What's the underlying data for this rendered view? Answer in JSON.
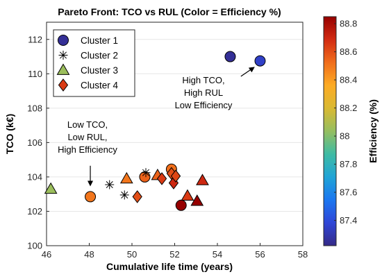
{
  "chart_data": {
    "type": "scatter",
    "title": "Pareto Front: TCO vs RUL (Color = Efficiency %)",
    "xlabel": "Cumulative life time (years)",
    "ylabel": "TCO (k€)",
    "xlim": [
      46,
      58
    ],
    "ylim": [
      100,
      113
    ],
    "xticks": [
      "46",
      "48",
      "50",
      "52",
      "54",
      "56",
      "58"
    ],
    "yticks": [
      "100",
      "102",
      "104",
      "106",
      "108",
      "110",
      "112"
    ],
    "grid": "horizontal",
    "legend_position": "top-left",
    "colorbar": {
      "label": "Efficiency (%)",
      "range": [
        87.22,
        88.85
      ],
      "ticks": [
        "87.4",
        "87.6",
        "87.8",
        "88",
        "88.2",
        "88.4",
        "88.6",
        "88.8"
      ]
    },
    "series": [
      {
        "name": "Cluster 1",
        "marker": "circle",
        "points": [
          {
            "x": 54.6,
            "y": 111.0,
            "efficiency": 87.25
          },
          {
            "x": 56.0,
            "y": 110.75,
            "efficiency": 87.35
          },
          {
            "x": 48.05,
            "y": 102.85,
            "efficiency": 88.5
          },
          {
            "x": 50.6,
            "y": 104.0,
            "efficiency": 88.55
          },
          {
            "x": 51.85,
            "y": 104.45,
            "efficiency": 88.52
          },
          {
            "x": 52.3,
            "y": 102.35,
            "efficiency": 88.85
          }
        ]
      },
      {
        "name": "Cluster 2",
        "marker": "asterisk",
        "points": [
          {
            "x": 48.95,
            "y": 103.55
          },
          {
            "x": 49.65,
            "y": 102.95
          },
          {
            "x": 50.65,
            "y": 104.25
          }
        ]
      },
      {
        "name": "Cluster 3",
        "marker": "triangle",
        "points": [
          {
            "x": 46.2,
            "y": 103.3,
            "efficiency": 88.05
          },
          {
            "x": 49.75,
            "y": 103.9,
            "efficiency": 88.5
          },
          {
            "x": 51.2,
            "y": 104.1,
            "efficiency": 88.55
          },
          {
            "x": 52.6,
            "y": 102.9,
            "efficiency": 88.65
          },
          {
            "x": 53.05,
            "y": 102.6,
            "efficiency": 88.85
          },
          {
            "x": 53.3,
            "y": 103.8,
            "efficiency": 88.7
          }
        ]
      },
      {
        "name": "Cluster 4",
        "marker": "diamond",
        "points": [
          {
            "x": 50.25,
            "y": 102.85,
            "efficiency": 88.6
          },
          {
            "x": 51.4,
            "y": 103.9,
            "efficiency": 88.65
          },
          {
            "x": 51.85,
            "y": 104.2,
            "efficiency": 88.6
          },
          {
            "x": 51.95,
            "y": 103.65,
            "efficiency": 88.7
          },
          {
            "x": 52.05,
            "y": 104.05,
            "efficiency": 88.62
          }
        ]
      }
    ],
    "annotations": [
      {
        "lines": [
          "High TCO,",
          "High RUL",
          "Low Efficiency"
        ],
        "arrow_from": [
          55.1,
          109.85
        ],
        "arrow_to": [
          55.75,
          110.4
        ]
      },
      {
        "lines": [
          "Low TCO,",
          "Low RUL,",
          "High Efficiency"
        ],
        "arrow_from": [
          48.05,
          104.65
        ],
        "arrow_to": [
          48.05,
          103.45
        ]
      }
    ]
  },
  "colors": {
    "asterisk": "#000000",
    "colormap": [
      "#352a87",
      "#2f46d7",
      "#1b77f0",
      "#20a4d6",
      "#3ebba3",
      "#95be60",
      "#d9b932",
      "#fdab24",
      "#f06d1b",
      "#d22b12",
      "#960000"
    ]
  }
}
